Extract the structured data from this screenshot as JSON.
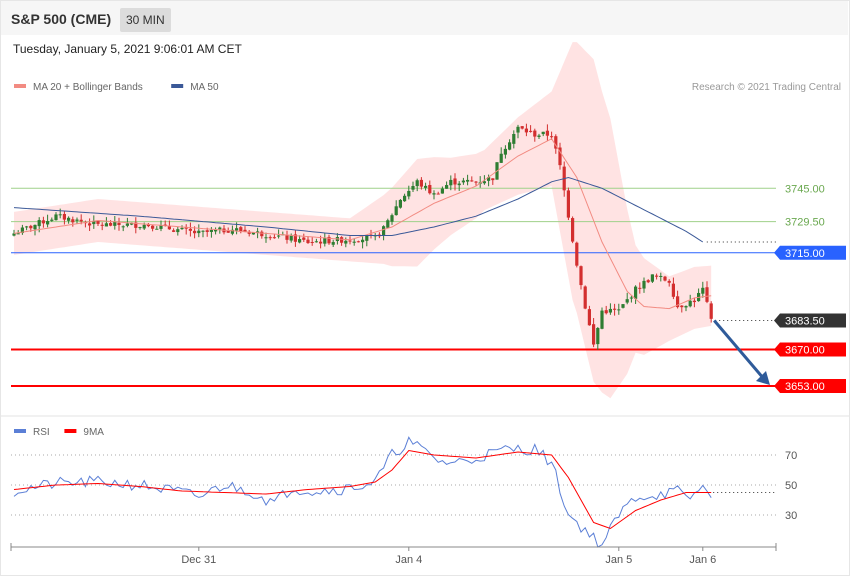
{
  "header": {
    "instrument": "S&P 500 (CME)",
    "timeframe": "30 MIN"
  },
  "timestamp": "Tuesday, January 5, 2021 9:06:01 AM CET",
  "copyright": "Research © 2021 Trading Central",
  "colors": {
    "up_candle": "#2e7d32",
    "down_candle": "#d32f2f",
    "ma20": "#f28b82",
    "ma50": "#3b5998",
    "bollinger": "#ffdede",
    "support": "#ff0000",
    "pivot": "#2962ff",
    "resistance": "#6aa84f",
    "last": "#333333",
    "arrow": "#2f5b9a",
    "rsi": "#5b7fd6",
    "rsi_ma": "#ff0000"
  },
  "chart_data": [
    {
      "type": "candlestick",
      "legend": [
        {
          "name": "MA 20 + Bollinger Bands",
          "color": "#f28b82"
        },
        {
          "name": "MA 50",
          "color": "#3b5998"
        }
      ],
      "ylim": [
        3640,
        3800
      ],
      "x_ticks": [
        {
          "label": "Dec 31",
          "index": 44
        },
        {
          "label": "Jan 4",
          "index": 94
        },
        {
          "label": "Jan 5",
          "index": 144
        },
        {
          "label": "Jan 6",
          "index": 164
        }
      ],
      "levels": [
        {
          "value": 3745.0,
          "label": "3745.00",
          "kind": "resistance"
        },
        {
          "value": 3729.5,
          "label": "3729.50",
          "kind": "resistance"
        },
        {
          "value": 3715.0,
          "label": "3715.00",
          "kind": "pivot"
        },
        {
          "value": 3683.5,
          "label": "3683.50",
          "kind": "last"
        },
        {
          "value": 3670.0,
          "label": "3670.00",
          "kind": "support"
        },
        {
          "value": 3653.0,
          "label": "3653.00",
          "kind": "support"
        }
      ],
      "close_anchors": [
        [
          0,
          3724
        ],
        [
          10,
          3732
        ],
        [
          20,
          3728
        ],
        [
          32,
          3728
        ],
        [
          44,
          3724
        ],
        [
          52,
          3726
        ],
        [
          62,
          3723
        ],
        [
          70,
          3720
        ],
        [
          78,
          3721
        ],
        [
          86,
          3722
        ],
        [
          88,
          3726
        ],
        [
          92,
          3740
        ],
        [
          96,
          3748
        ],
        [
          100,
          3742
        ],
        [
          104,
          3748
        ],
        [
          110,
          3748
        ],
        [
          114,
          3750
        ],
        [
          116,
          3762
        ],
        [
          120,
          3773
        ],
        [
          124,
          3770
        ],
        [
          128,
          3770
        ],
        [
          130,
          3755
        ],
        [
          134,
          3710
        ],
        [
          136,
          3690
        ],
        [
          138,
          3672
        ],
        [
          140,
          3688
        ],
        [
          144,
          3688
        ],
        [
          148,
          3698
        ],
        [
          152,
          3704
        ],
        [
          156,
          3702
        ],
        [
          158,
          3690
        ],
        [
          162,
          3693
        ],
        [
          164,
          3698
        ],
        [
          166,
          3683.5
        ]
      ],
      "ma20_anchors": [
        [
          0,
          3724
        ],
        [
          20,
          3730
        ],
        [
          40,
          3727
        ],
        [
          60,
          3724
        ],
        [
          80,
          3721
        ],
        [
          90,
          3727
        ],
        [
          100,
          3738
        ],
        [
          110,
          3746
        ],
        [
          120,
          3760
        ],
        [
          128,
          3768
        ],
        [
          134,
          3750
        ],
        [
          140,
          3720
        ],
        [
          146,
          3697
        ],
        [
          150,
          3690
        ],
        [
          156,
          3689
        ],
        [
          162,
          3694
        ],
        [
          166,
          3695
        ]
      ],
      "ma50_anchors": [
        [
          0,
          3736
        ],
        [
          30,
          3732
        ],
        [
          60,
          3727
        ],
        [
          80,
          3723
        ],
        [
          90,
          3723
        ],
        [
          100,
          3727
        ],
        [
          110,
          3732
        ],
        [
          120,
          3740
        ],
        [
          128,
          3748
        ],
        [
          132,
          3750
        ],
        [
          140,
          3745
        ],
        [
          150,
          3735
        ],
        [
          160,
          3725
        ],
        [
          164,
          3720
        ]
      ],
      "bollinger_width_anchors": [
        [
          0,
          10
        ],
        [
          30,
          10
        ],
        [
          60,
          10
        ],
        [
          80,
          10
        ],
        [
          88,
          16
        ],
        [
          96,
          25
        ],
        [
          104,
          18
        ],
        [
          112,
          14
        ],
        [
          120,
          18
        ],
        [
          128,
          22
        ],
        [
          133,
          60
        ],
        [
          138,
          75
        ],
        [
          142,
          65
        ],
        [
          148,
          25
        ],
        [
          156,
          15
        ],
        [
          166,
          14
        ]
      ]
    },
    {
      "type": "line",
      "legend": [
        {
          "name": "RSI",
          "color": "#5b7fd6"
        },
        {
          "name": "9MA",
          "color": "#ff0000"
        }
      ],
      "ylim": [
        10,
        90
      ],
      "y_levels": [
        {
          "value": 70,
          "label": "70"
        },
        {
          "value": 50,
          "label": "50"
        },
        {
          "value": 30,
          "label": "30"
        }
      ],
      "rsi_anchors": [
        [
          0,
          46
        ],
        [
          10,
          51
        ],
        [
          20,
          52
        ],
        [
          30,
          50
        ],
        [
          40,
          45
        ],
        [
          44,
          42
        ],
        [
          50,
          50
        ],
        [
          56,
          46
        ],
        [
          62,
          38
        ],
        [
          66,
          48
        ],
        [
          72,
          46
        ],
        [
          80,
          48
        ],
        [
          86,
          52
        ],
        [
          90,
          70
        ],
        [
          94,
          79
        ],
        [
          98,
          72
        ],
        [
          102,
          65
        ],
        [
          108,
          66
        ],
        [
          112,
          70
        ],
        [
          118,
          74
        ],
        [
          124,
          74
        ],
        [
          128,
          65
        ],
        [
          132,
          30
        ],
        [
          136,
          20
        ],
        [
          140,
          10
        ],
        [
          144,
          30
        ],
        [
          148,
          42
        ],
        [
          154,
          44
        ],
        [
          158,
          46
        ],
        [
          160,
          40
        ],
        [
          164,
          48
        ],
        [
          166,
          45
        ]
      ],
      "rsi_ma_anchors": [
        [
          0,
          47
        ],
        [
          10,
          50
        ],
        [
          20,
          51
        ],
        [
          30,
          49
        ],
        [
          40,
          46
        ],
        [
          50,
          45
        ],
        [
          60,
          44
        ],
        [
          70,
          47
        ],
        [
          80,
          49
        ],
        [
          86,
          52
        ],
        [
          90,
          60
        ],
        [
          94,
          73
        ],
        [
          100,
          70
        ],
        [
          110,
          68
        ],
        [
          120,
          72
        ],
        [
          128,
          70
        ],
        [
          132,
          55
        ],
        [
          138,
          25
        ],
        [
          142,
          21
        ],
        [
          148,
          33
        ],
        [
          154,
          40
        ],
        [
          160,
          45
        ],
        [
          166,
          45
        ]
      ],
      "rsi_current": 45
    }
  ]
}
